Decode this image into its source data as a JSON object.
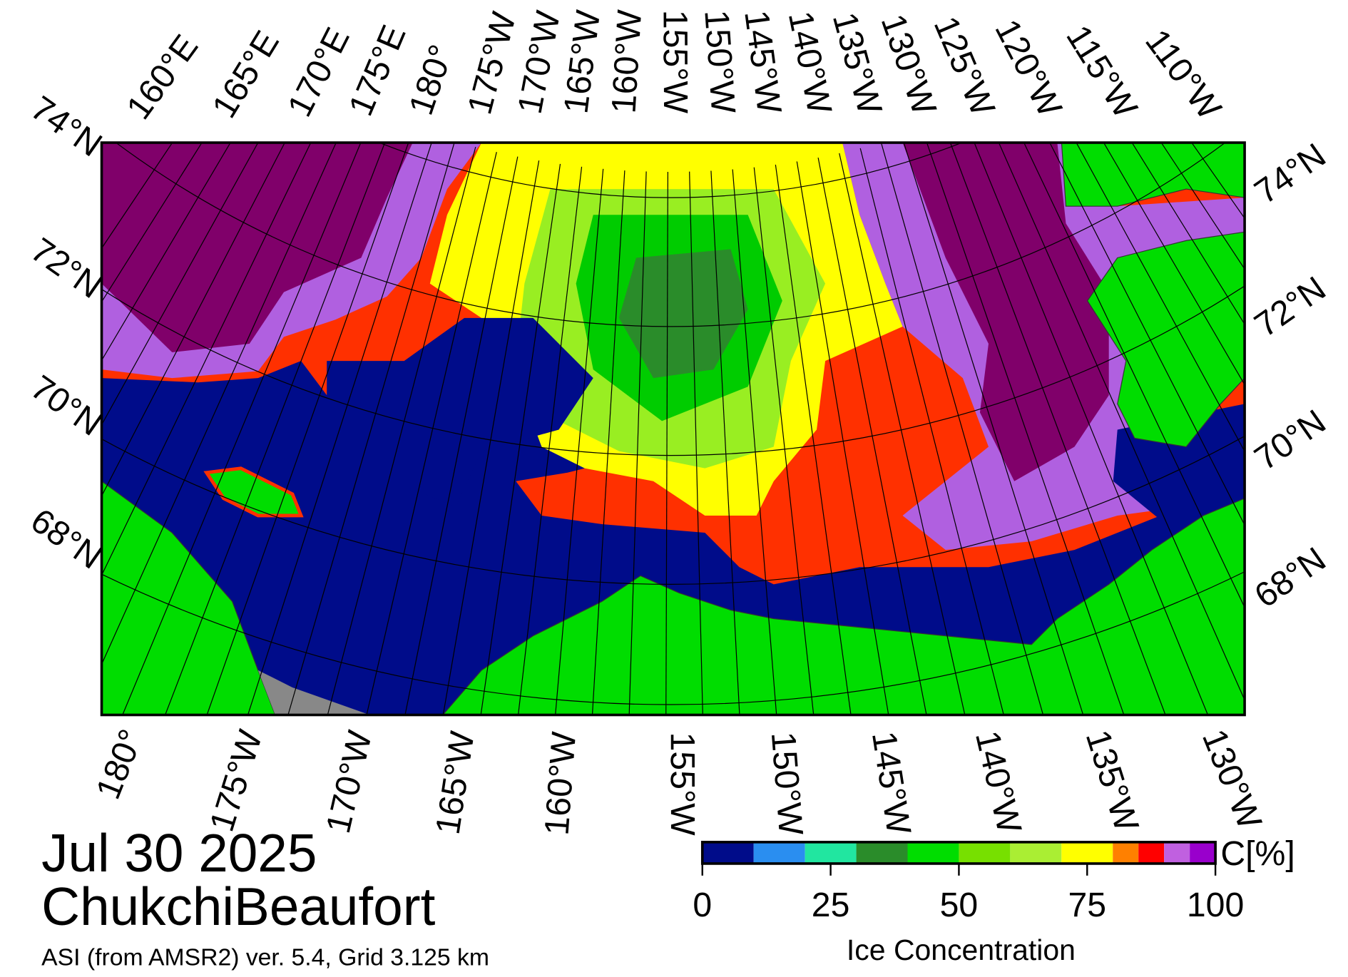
{
  "header": {
    "date": "Jul 30 2025",
    "region": "ChukchiBeaufort",
    "source": "ASI (from AMSR2) ver. 5.4,  Grid 3.125 km"
  },
  "map": {
    "lat_labels_left": [
      "74°N",
      "72°N",
      "70°N",
      "68°N"
    ],
    "lat_labels_right": [
      "74°N",
      "72°N",
      "70°N",
      "68°N"
    ],
    "lon_labels_top": [
      "160°E",
      "165°E",
      "170°E",
      "175°E",
      "180°",
      "175°W",
      "170°W",
      "165°W",
      "160°W",
      "155°W",
      "150°W",
      "145°W",
      "140°W",
      "135°W",
      "130°W",
      "125°W",
      "120°W",
      "115°W",
      "110°W"
    ],
    "lon_labels_bottom": [
      "180°",
      "175°W",
      "170°W",
      "165°W",
      "160°W",
      "155°W",
      "150°W",
      "145°W",
      "140°W",
      "135°W",
      "130°W"
    ]
  },
  "colorbar": {
    "title": "Ice Concentration",
    "unit": "C[%]",
    "bins": [
      0,
      10,
      20,
      30,
      40,
      50,
      60,
      70,
      80,
      85,
      90,
      95,
      100
    ],
    "colors": [
      "#000c8a",
      "#2a8ef0",
      "#21e6a0",
      "#2a8c2a",
      "#00dd00",
      "#77e000",
      "#aaee33",
      "#ffff00",
      "#ff8000",
      "#ff0000",
      "#c060e0",
      "#9900cc"
    ],
    "ticks": [
      0,
      25,
      50,
      75,
      100
    ]
  }
}
